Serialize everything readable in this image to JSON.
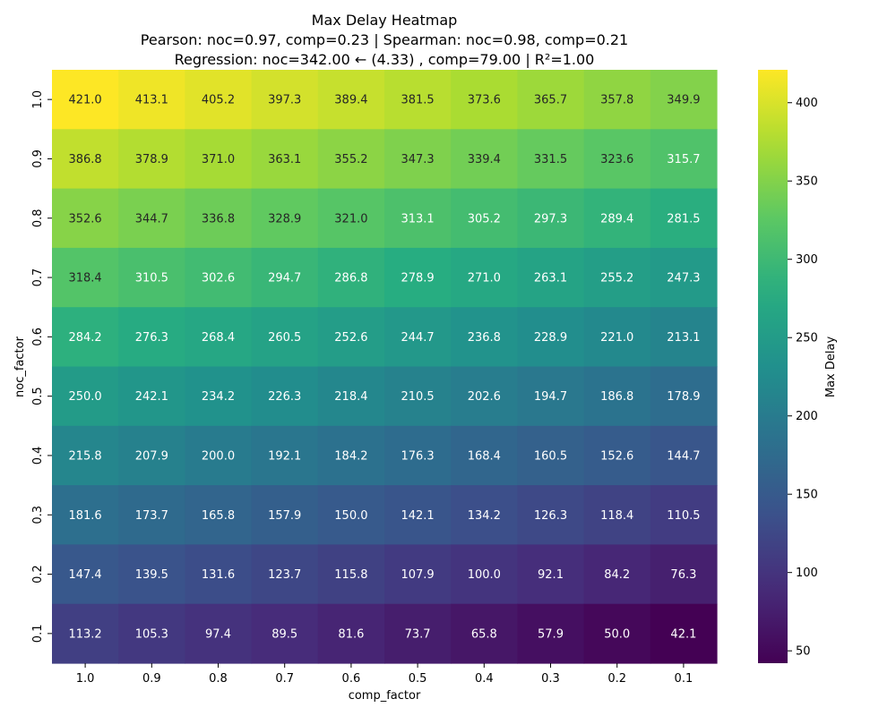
{
  "chart_data": {
    "type": "heatmap",
    "title": "Max Delay Heatmap",
    "subtitle_1": "Pearson: noc=0.97, comp=0.23 | Spearman: noc=0.98, comp=0.21",
    "subtitle_2": "Regression: noc=342.00 ← (4.33) , comp=79.00 | R²=1.00",
    "xlabel": "comp_factor",
    "ylabel": "noc_factor",
    "x_categories": [
      "1.0",
      "0.9",
      "0.8",
      "0.7",
      "0.6",
      "0.5",
      "0.4",
      "0.3",
      "0.2",
      "0.1"
    ],
    "y_categories": [
      "1.0",
      "0.9",
      "0.8",
      "0.7",
      "0.6",
      "0.5",
      "0.4",
      "0.3",
      "0.2",
      "0.1"
    ],
    "values": [
      [
        421.0,
        413.1,
        405.2,
        397.3,
        389.4,
        381.5,
        373.6,
        365.7,
        357.8,
        349.9
      ],
      [
        386.8,
        378.9,
        371.0,
        363.1,
        355.2,
        347.3,
        339.4,
        331.5,
        323.6,
        315.7
      ],
      [
        352.6,
        344.7,
        336.8,
        328.9,
        321.0,
        313.1,
        305.2,
        297.3,
        289.4,
        281.5
      ],
      [
        318.4,
        310.5,
        302.6,
        294.7,
        286.8,
        278.9,
        271.0,
        263.1,
        255.2,
        247.3
      ],
      [
        284.2,
        276.3,
        268.4,
        260.5,
        252.6,
        244.7,
        236.8,
        228.9,
        221.0,
        213.1
      ],
      [
        250.0,
        242.1,
        234.2,
        226.3,
        218.4,
        210.5,
        202.6,
        194.7,
        186.8,
        178.9
      ],
      [
        215.8,
        207.9,
        200.0,
        192.1,
        184.2,
        176.3,
        168.4,
        160.5,
        152.6,
        144.7
      ],
      [
        181.6,
        173.7,
        165.8,
        157.9,
        150.0,
        142.1,
        134.2,
        126.3,
        118.4,
        110.5
      ],
      [
        147.4,
        139.5,
        131.6,
        123.7,
        115.8,
        107.9,
        100.0,
        92.1,
        84.2,
        76.3
      ],
      [
        113.2,
        105.3,
        97.4,
        89.5,
        81.6,
        73.7,
        65.8,
        57.9,
        50.0,
        42.1
      ]
    ],
    "colorbar": {
      "label": "Max Delay",
      "colormap": "viridis",
      "vmin": 42.1,
      "vmax": 421.0,
      "ticks": [
        50,
        100,
        150,
        200,
        250,
        300,
        350,
        400
      ]
    }
  }
}
